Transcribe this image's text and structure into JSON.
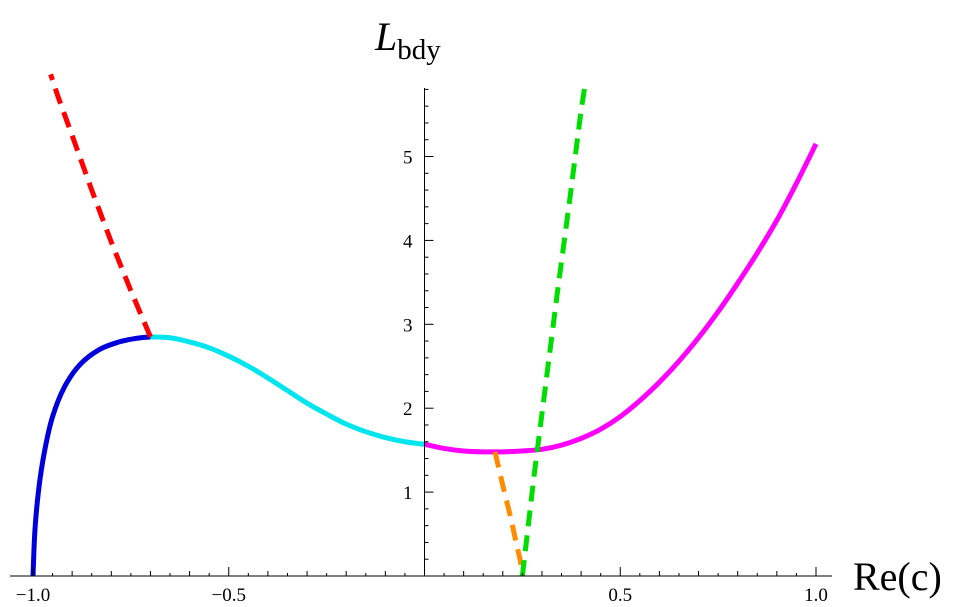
{
  "chart_data": {
    "type": "line",
    "xlabel": "Re(c)",
    "ylabel_main": "L",
    "ylabel_sub": "bdy",
    "xlim": [
      -1.0,
      1.0
    ],
    "ylim": [
      0,
      5.9
    ],
    "x_ticks": [
      {
        "value": -1.0,
        "label": "−1.0"
      },
      {
        "value": -0.5,
        "label": "−0.5"
      },
      {
        "value": 0.5,
        "label": "0.5"
      },
      {
        "value": 1.0,
        "label": "1.0"
      }
    ],
    "y_ticks": [
      {
        "value": 1,
        "label": "1"
      },
      {
        "value": 2,
        "label": "2"
      },
      {
        "value": 3,
        "label": "3"
      },
      {
        "value": 4,
        "label": "4"
      },
      {
        "value": 5,
        "label": "5"
      }
    ],
    "grid": false,
    "series": [
      {
        "color": "#0000dd",
        "style": "solid",
        "points": [
          [
            -1.0,
            0.0
          ],
          [
            -0.995,
            0.55
          ],
          [
            -0.985,
            1.05
          ],
          [
            -0.97,
            1.5
          ],
          [
            -0.95,
            1.9
          ],
          [
            -0.92,
            2.25
          ],
          [
            -0.88,
            2.52
          ],
          [
            -0.83,
            2.7
          ],
          [
            -0.78,
            2.79
          ],
          [
            -0.74,
            2.83
          ],
          [
            -0.7,
            2.85
          ]
        ]
      },
      {
        "color": "#00e5ee",
        "style": "solid",
        "points": [
          [
            -0.7,
            2.85
          ],
          [
            -0.65,
            2.84
          ],
          [
            -0.6,
            2.79
          ],
          [
            -0.55,
            2.72
          ],
          [
            -0.5,
            2.62
          ],
          [
            -0.45,
            2.5
          ],
          [
            -0.4,
            2.36
          ],
          [
            -0.35,
            2.21
          ],
          [
            -0.3,
            2.06
          ],
          [
            -0.25,
            1.93
          ],
          [
            -0.2,
            1.81
          ],
          [
            -0.15,
            1.72
          ],
          [
            -0.1,
            1.65
          ],
          [
            -0.05,
            1.6
          ],
          [
            0.0,
            1.57
          ]
        ]
      },
      {
        "color": "#ff00ff",
        "style": "solid",
        "points": [
          [
            0.0,
            1.57
          ],
          [
            0.05,
            1.52
          ],
          [
            0.1,
            1.49
          ],
          [
            0.15,
            1.48
          ],
          [
            0.2,
            1.48
          ],
          [
            0.25,
            1.49
          ],
          [
            0.3,
            1.51
          ],
          [
            0.35,
            1.56
          ],
          [
            0.4,
            1.64
          ],
          [
            0.45,
            1.75
          ],
          [
            0.5,
            1.9
          ],
          [
            0.55,
            2.09
          ],
          [
            0.6,
            2.31
          ],
          [
            0.65,
            2.56
          ],
          [
            0.7,
            2.84
          ],
          [
            0.75,
            3.15
          ],
          [
            0.8,
            3.49
          ],
          [
            0.85,
            3.85
          ],
          [
            0.9,
            4.24
          ],
          [
            0.95,
            4.68
          ],
          [
            1.0,
            5.15
          ]
        ]
      },
      {
        "color": "#ff0000",
        "style": "dashed",
        "points": [
          [
            -0.7,
            2.85
          ],
          [
            -0.75,
            3.4
          ],
          [
            -0.8,
            3.98
          ],
          [
            -0.85,
            4.6
          ],
          [
            -0.9,
            5.25
          ],
          [
            -0.935,
            5.7
          ],
          [
            -0.955,
            5.98
          ]
        ]
      },
      {
        "color": "#ff8c00",
        "style": "dashed",
        "points": [
          [
            0.18,
            1.48
          ],
          [
            0.2,
            1.08
          ],
          [
            0.22,
            0.7
          ],
          [
            0.235,
            0.38
          ],
          [
            0.245,
            0.18
          ],
          [
            0.25,
            0.0
          ]
        ]
      },
      {
        "color": "#00dd00",
        "style": "dashed",
        "points": [
          [
            0.25,
            0.0
          ],
          [
            0.28,
            1.2
          ],
          [
            0.31,
            2.3
          ],
          [
            0.34,
            3.4
          ],
          [
            0.37,
            4.45
          ],
          [
            0.4,
            5.55
          ],
          [
            0.41,
            5.85
          ]
        ]
      }
    ]
  }
}
